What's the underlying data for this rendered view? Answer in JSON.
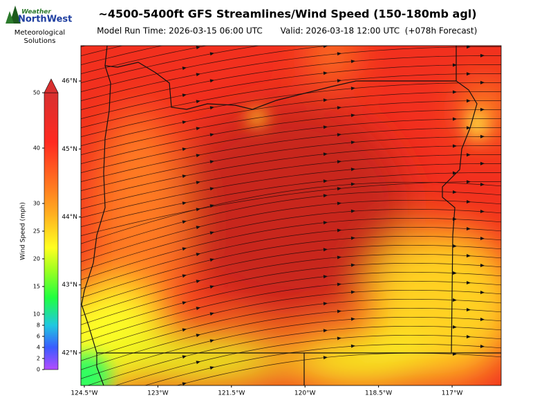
{
  "header": {
    "logo_top": "Weather",
    "logo_main": "NorthWest",
    "logo_sub": "Meteorological Solutions"
  },
  "chart_data": {
    "type": "map",
    "title": "~4500-5400ft GFS Streamlines/Wind Speed (150-180mb agl)",
    "subtitle_run": "Model Run Time: 2026-03-15 06:00 UTC",
    "subtitle_valid": "Valid: 2026-03-18 12:00 UTC  (+078h Forecast)",
    "xlim": [
      -124.57,
      -116.0
    ],
    "xticks": [
      {
        "value": -124.5,
        "label": "124.5°W"
      },
      {
        "value": -123,
        "label": "123°W"
      },
      {
        "value": -121.5,
        "label": "121.5°W"
      },
      {
        "value": -120,
        "label": "120°W"
      },
      {
        "value": -118.5,
        "label": "118.5°W"
      },
      {
        "value": -117,
        "label": "117°W"
      }
    ],
    "ylim": [
      41.52,
      46.52
    ],
    "yticks": [
      {
        "value": 42,
        "label": "42°N"
      },
      {
        "value": 43,
        "label": "43°N"
      },
      {
        "value": 44,
        "label": "44°N"
      },
      {
        "value": 45,
        "label": "45°N"
      },
      {
        "value": 46,
        "label": "46°N"
      }
    ],
    "colorbar": {
      "label": "Wind Speed (mph)",
      "lim": [
        0,
        50
      ],
      "ticks": [
        0,
        2,
        4,
        6,
        8,
        10,
        15,
        20,
        25,
        30,
        40,
        50
      ]
    }
  }
}
